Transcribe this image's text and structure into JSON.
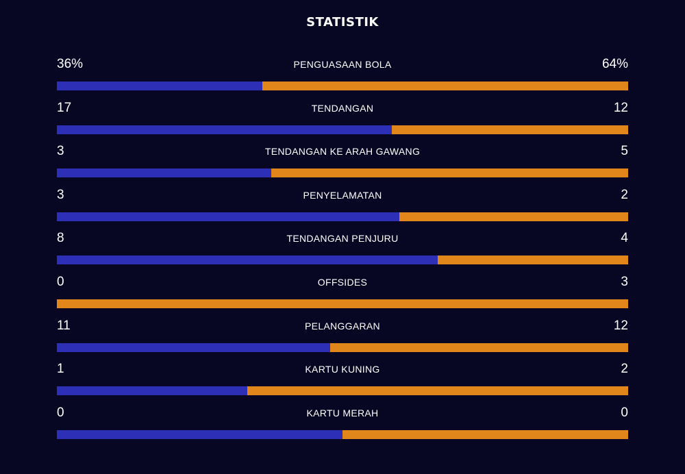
{
  "title": "STATISTIK",
  "colors": {
    "background": "#080723",
    "home": "#2d2fb7",
    "away": "#e0861a"
  },
  "stats": [
    {
      "label": "PENGUASAAN BOLA",
      "home": "36%",
      "away": "64%",
      "home_share": 0.36
    },
    {
      "label": "TENDANGAN",
      "home": "17",
      "away": "12",
      "home_share": 0.586
    },
    {
      "label": "TENDANGAN KE ARAH GAWANG",
      "home": "3",
      "away": "5",
      "home_share": 0.375
    },
    {
      "label": "PENYELAMATAN",
      "home": "3",
      "away": "2",
      "home_share": 0.6
    },
    {
      "label": "TENDANGAN PENJURU",
      "home": "8",
      "away": "4",
      "home_share": 0.667
    },
    {
      "label": "OFFSIDES",
      "home": "0",
      "away": "3",
      "home_share": 0.0
    },
    {
      "label": "PELANGGARAN",
      "home": "11",
      "away": "12",
      "home_share": 0.478
    },
    {
      "label": "KARTU KUNING",
      "home": "1",
      "away": "2",
      "home_share": 0.333
    },
    {
      "label": "KARTU MERAH",
      "home": "0",
      "away": "0",
      "home_share": 0.5
    }
  ]
}
